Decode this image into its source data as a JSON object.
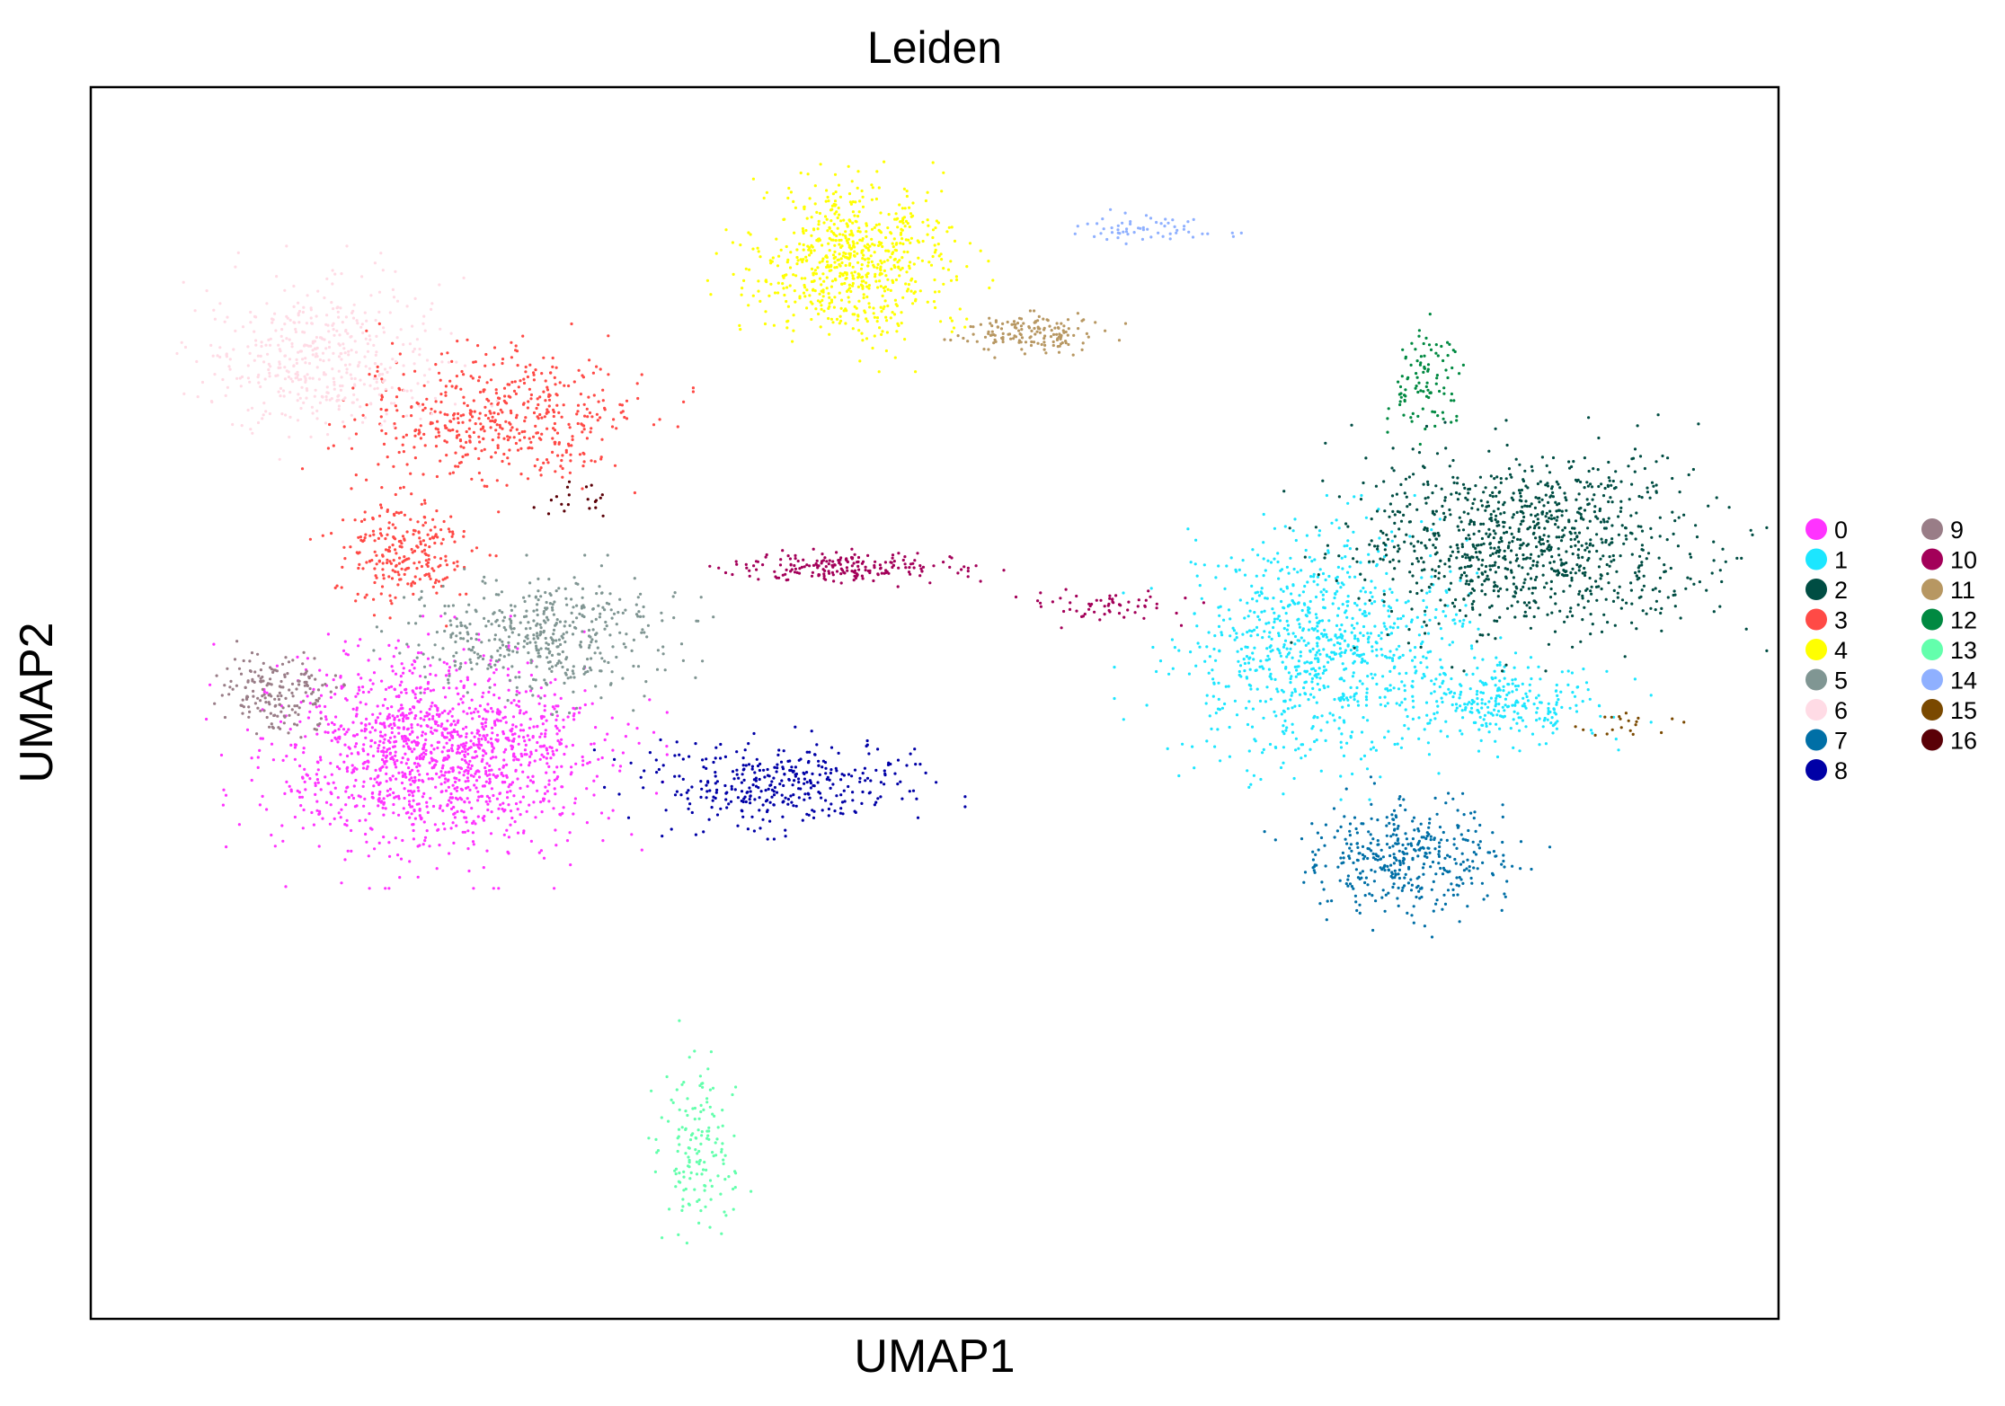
{
  "chart_data": {
    "type": "scatter",
    "title": "Leiden",
    "xlabel": "UMAP1",
    "ylabel": "UMAP2",
    "xlim": [
      0,
      100
    ],
    "ylim": [
      0,
      100
    ],
    "grid": false,
    "ticks": false,
    "legend_position": "right",
    "series": [
      {
        "name": "0",
        "color": "#ff33ff",
        "regions": [
          {
            "cx": 20.5,
            "cy": 46,
            "rx": 10.5,
            "ry": 8.5,
            "n": 1400
          }
        ]
      },
      {
        "name": "1",
        "color": "#1ce6ff",
        "regions": [
          {
            "cx": 73,
            "cy": 54.5,
            "rx": 9.5,
            "ry": 9.5,
            "n": 900
          },
          {
            "cx": 84,
            "cy": 50,
            "rx": 6.5,
            "ry": 3.5,
            "n": 250
          }
        ]
      },
      {
        "name": "2",
        "color": "#004d43",
        "regions": [
          {
            "cx": 85,
            "cy": 63,
            "rx": 11,
            "ry": 8,
            "n": 1000
          }
        ]
      },
      {
        "name": "3",
        "color": "#ff4a46",
        "regions": [
          {
            "cx": 24,
            "cy": 73,
            "rx": 9,
            "ry": 6,
            "n": 500
          },
          {
            "cx": 18.5,
            "cy": 62,
            "rx": 4.5,
            "ry": 5,
            "n": 250
          }
        ]
      },
      {
        "name": "4",
        "color": "#ffff00",
        "regions": [
          {
            "cx": 45,
            "cy": 86,
            "rx": 6.5,
            "ry": 7,
            "n": 700
          }
        ]
      },
      {
        "name": "5",
        "color": "#809693",
        "regions": [
          {
            "cx": 27,
            "cy": 55.5,
            "rx": 8,
            "ry": 5,
            "n": 450
          }
        ]
      },
      {
        "name": "6",
        "color": "#ffdbe5",
        "regions": [
          {
            "cx": 14,
            "cy": 78,
            "rx": 8,
            "ry": 7,
            "n": 450
          }
        ]
      },
      {
        "name": "7",
        "color": "#006fa6",
        "regions": [
          {
            "cx": 78,
            "cy": 37.5,
            "rx": 6.5,
            "ry": 5,
            "n": 400
          }
        ]
      },
      {
        "name": "8",
        "color": "#0000a6",
        "regions": [
          {
            "cx": 40.5,
            "cy": 43.5,
            "rx": 9,
            "ry": 3.5,
            "n": 350
          }
        ]
      },
      {
        "name": "9",
        "color": "#997d87",
        "regions": [
          {
            "cx": 11,
            "cy": 51,
            "rx": 3.5,
            "ry": 3.5,
            "n": 180
          }
        ]
      },
      {
        "name": "10",
        "color": "#a30059",
        "regions": [
          {
            "cx": 45,
            "cy": 61,
            "rx": 7,
            "ry": 1.4,
            "n": 200
          },
          {
            "cx": 60,
            "cy": 58,
            "rx": 5,
            "ry": 1.5,
            "n": 60
          }
        ]
      },
      {
        "name": "11",
        "color": "#b79762",
        "regions": [
          {
            "cx": 55.5,
            "cy": 80,
            "rx": 4.5,
            "ry": 1.8,
            "n": 150
          }
        ]
      },
      {
        "name": "12",
        "color": "#008941",
        "regions": [
          {
            "cx": 79,
            "cy": 76,
            "rx": 2,
            "ry": 5,
            "n": 100
          }
        ]
      },
      {
        "name": "13",
        "color": "#63ffac",
        "regions": [
          {
            "cx": 36,
            "cy": 14,
            "rx": 2.5,
            "ry": 8,
            "n": 150
          }
        ]
      },
      {
        "name": "14",
        "color": "#8fb0ff",
        "regions": [
          {
            "cx": 63,
            "cy": 88.5,
            "rx": 5,
            "ry": 1.2,
            "n": 60
          }
        ]
      },
      {
        "name": "15",
        "color": "#7a4900",
        "regions": [
          {
            "cx": 91,
            "cy": 48,
            "rx": 3.5,
            "ry": 1.5,
            "n": 20
          }
        ]
      },
      {
        "name": "16",
        "color": "#5a0007",
        "regions": [
          {
            "cx": 29,
            "cy": 66.5,
            "rx": 2.5,
            "ry": 1.5,
            "n": 20
          }
        ]
      }
    ]
  }
}
